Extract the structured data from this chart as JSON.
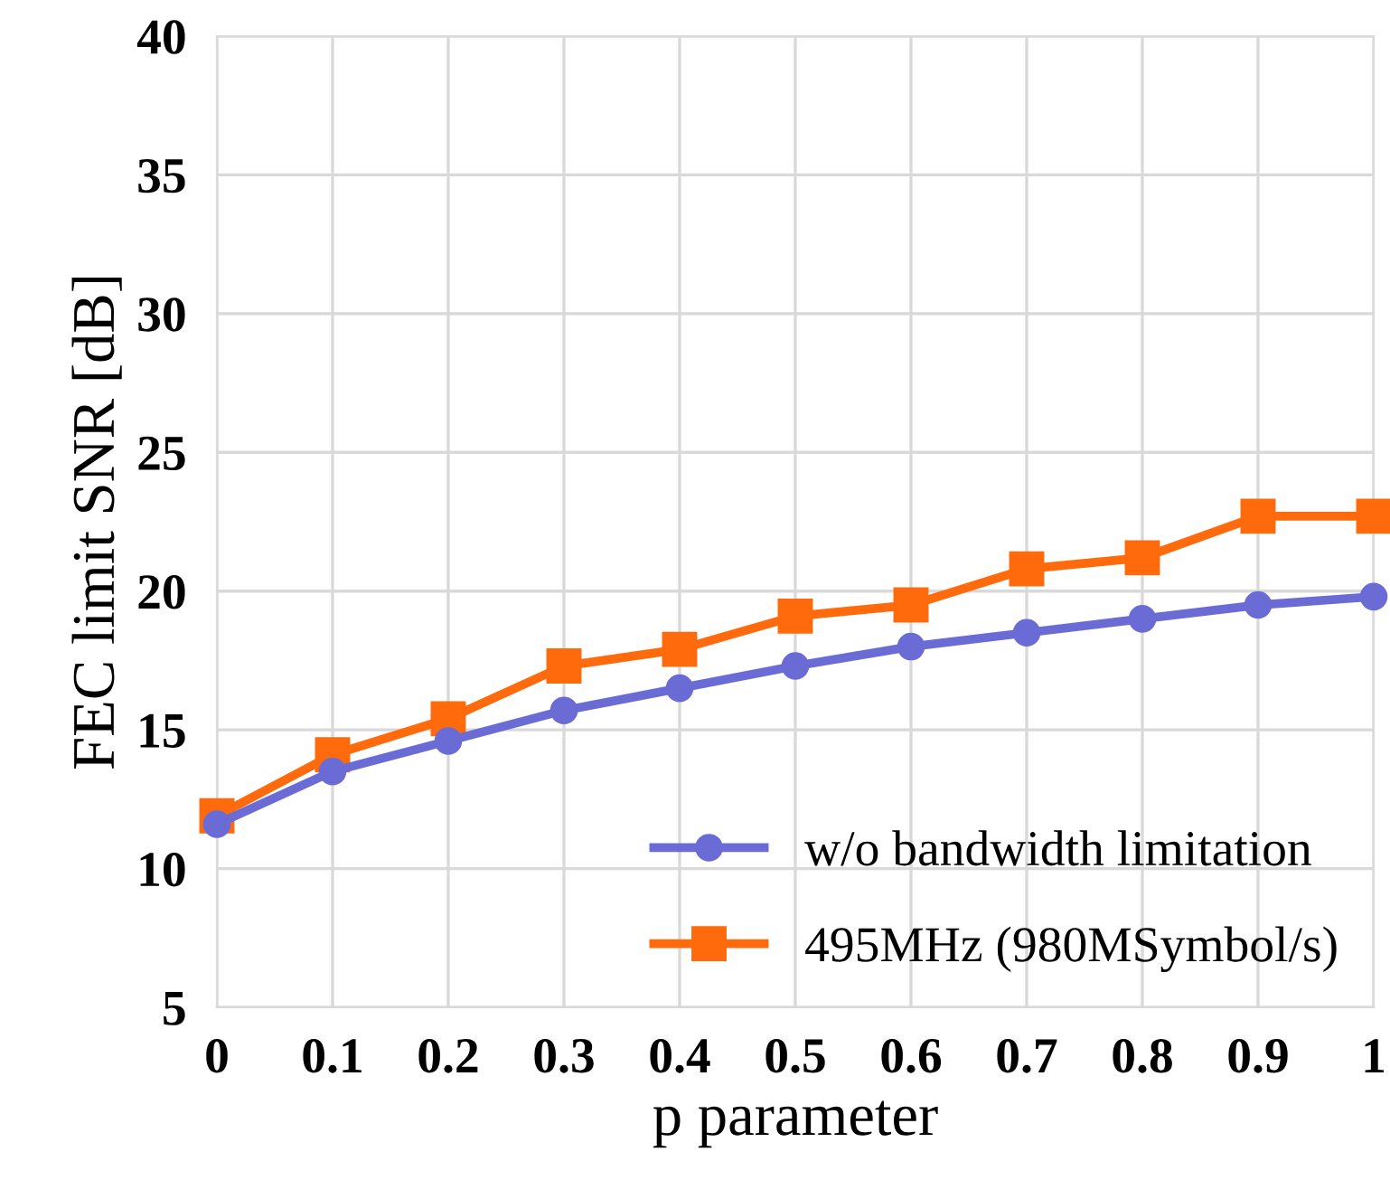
{
  "chart_data": {
    "type": "line",
    "xlabel": "p parameter",
    "ylabel": "FEC limit SNR [dB]",
    "x": [
      0,
      0.1,
      0.2,
      0.3,
      0.4,
      0.5,
      0.6,
      0.7,
      0.8,
      0.9,
      1
    ],
    "series": [
      {
        "name": "w/o bandwidth limitation",
        "color": "#6b6bd6",
        "marker": "circle",
        "values": [
          11.6,
          13.5,
          14.6,
          15.7,
          16.5,
          17.3,
          18.0,
          18.5,
          19.0,
          19.5,
          19.8
        ]
      },
      {
        "name": "495MHz (980MSymbol/s)",
        "color": "#ff6a0d",
        "marker": "square",
        "values": [
          11.9,
          14.1,
          15.4,
          17.3,
          17.9,
          19.1,
          19.5,
          20.8,
          21.2,
          22.7,
          22.7
        ]
      }
    ],
    "xlim": [
      0,
      1
    ],
    "xticks": [
      0,
      0.1,
      0.2,
      0.3,
      0.4,
      0.5,
      0.6,
      0.7,
      0.8,
      0.9,
      1
    ],
    "ylim": [
      5,
      40
    ],
    "yticks": [
      5,
      10,
      15,
      20,
      25,
      30,
      35,
      40
    ],
    "grid": true,
    "legend": "bottom right",
    "line_style": "solid"
  }
}
